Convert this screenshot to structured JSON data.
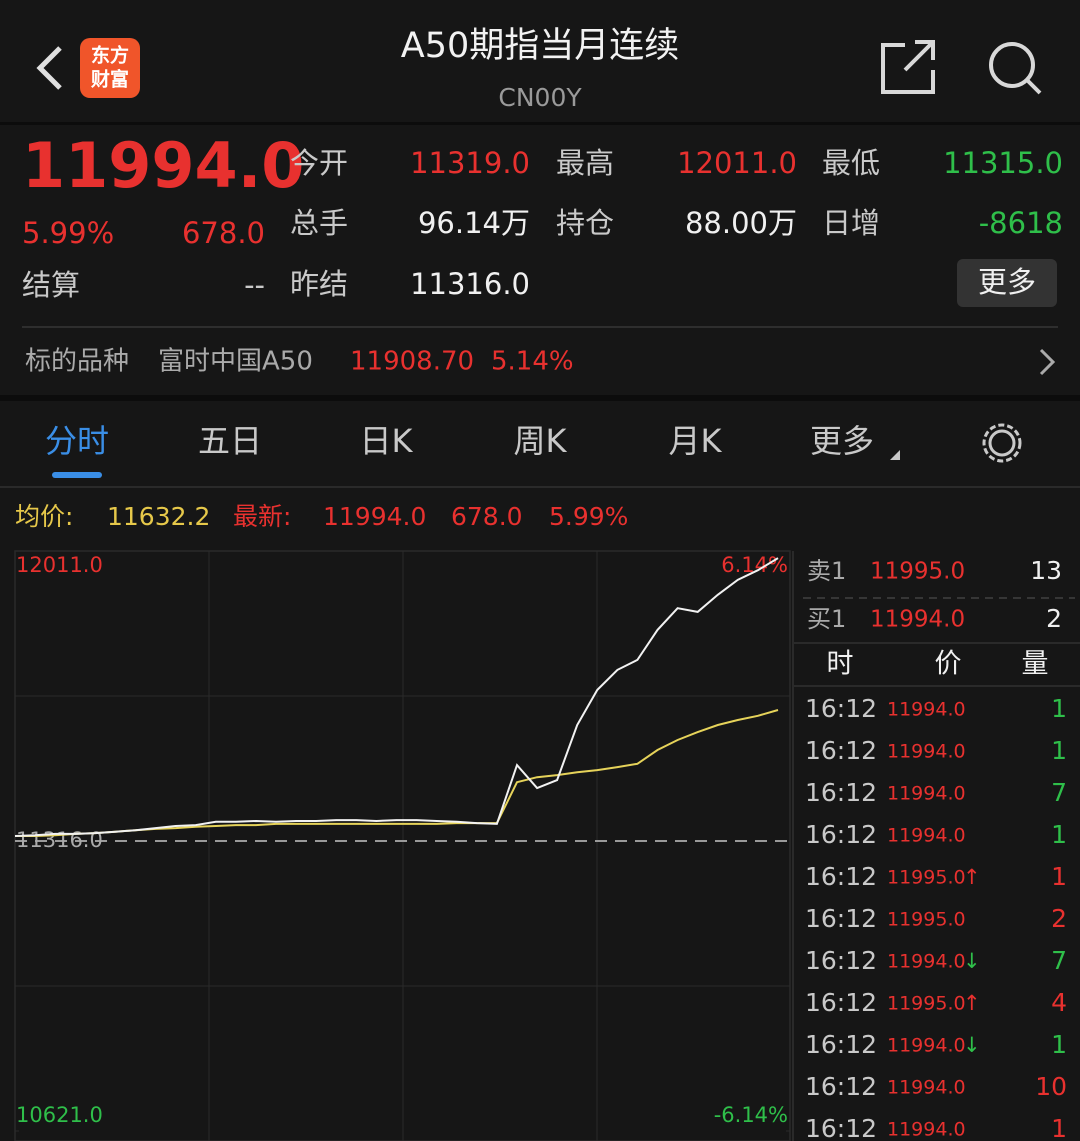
{
  "header": {
    "title": "A50期指当月连续",
    "code": "CN00Y",
    "logo": [
      "东方",
      "财富"
    ]
  },
  "colors": {
    "up": "#e8312f",
    "down": "#2fbf4a",
    "flat": "#f0f0f0"
  },
  "quote": {
    "price": "11994.0",
    "change_pct": "5.99%",
    "change": "678.0",
    "settle_label": "结算",
    "settle": "--",
    "fields": [
      {
        "label": "今开",
        "value": "11319.0",
        "color": "up"
      },
      {
        "label": "最高",
        "value": "12011.0",
        "color": "up"
      },
      {
        "label": "最低",
        "value": "11315.0",
        "color": "down"
      },
      {
        "label": "总手",
        "value": "96.14万",
        "color": "flat"
      },
      {
        "label": "持仓",
        "value": "88.00万",
        "color": "flat"
      },
      {
        "label": "日增",
        "value": "-8618",
        "color": "down"
      },
      {
        "label": "昨结",
        "value": "11316.0",
        "color": "flat"
      }
    ],
    "more": "更多"
  },
  "underlying": {
    "label": "标的品种",
    "name": "富时中国A50",
    "price": "11908.70",
    "pct": "5.14%"
  },
  "tabs": {
    "items": [
      "分时",
      "五日",
      "日K",
      "周K",
      "月K",
      "更多"
    ],
    "active": 0
  },
  "info_bar": {
    "avg_label": "均价:",
    "avg": "11632.2",
    "latest_label": "最新:",
    "latest": "11994.0",
    "change": "678.0",
    "pct": "5.99%"
  },
  "chart_data": {
    "type": "line",
    "ylim": [
      10621,
      12011
    ],
    "yticks": [
      {
        "value": 12011,
        "label": "12011.0"
      },
      {
        "value": 11316,
        "label": "11316.0"
      },
      {
        "value": 10621,
        "label": "10621.0"
      }
    ],
    "y2lim": [
      -6.14,
      6.14
    ],
    "y2ticks": [
      {
        "value": 6.14,
        "label": "6.14%"
      },
      {
        "value": -6.14,
        "label": "-6.14%"
      }
    ],
    "series": [
      {
        "name": "最新",
        "color": "#f2f2f2",
        "values": [
          11328,
          11330,
          11333,
          11333,
          11335,
          11338,
          11342,
          11347,
          11352,
          11354,
          11362,
          11362,
          11364,
          11362,
          11364,
          11364,
          11366,
          11366,
          11364,
          11366,
          11366,
          11364,
          11362,
          11359,
          11357,
          11498,
          11443,
          11462,
          11594,
          11678,
          11726,
          11750,
          11822,
          11874,
          11865,
          11906,
          11942,
          11965,
          11994
        ]
      },
      {
        "name": "均价",
        "color": "#e6d35a",
        "values": [
          11328,
          11328,
          11330,
          11333,
          11335,
          11338,
          11342,
          11345,
          11347,
          11350,
          11352,
          11354,
          11354,
          11357,
          11357,
          11357,
          11357,
          11357,
          11357,
          11357,
          11357,
          11357,
          11359,
          11359,
          11359,
          11457,
          11469,
          11474,
          11481,
          11486,
          11493,
          11501,
          11534,
          11558,
          11577,
          11594,
          11606,
          11616,
          11630
        ]
      }
    ]
  },
  "orderbook": [
    {
      "label": "卖1",
      "price": "11995.0",
      "qty": "13"
    },
    {
      "label": "买1",
      "price": "11994.0",
      "qty": "2"
    }
  ],
  "trades": {
    "headers": [
      "时",
      "价",
      "量"
    ],
    "rows": [
      {
        "time": "16:12",
        "price": "11994.0",
        "arrow": null,
        "qty": "1",
        "qty_color": "down"
      },
      {
        "time": "16:12",
        "price": "11994.0",
        "arrow": null,
        "qty": "1",
        "qty_color": "down"
      },
      {
        "time": "16:12",
        "price": "11994.0",
        "arrow": null,
        "qty": "7",
        "qty_color": "down"
      },
      {
        "time": "16:12",
        "price": "11994.0",
        "arrow": null,
        "qty": "1",
        "qty_color": "down"
      },
      {
        "time": "16:12",
        "price": "11995.0",
        "arrow": "↑",
        "qty": "1",
        "qty_color": "up"
      },
      {
        "time": "16:12",
        "price": "11995.0",
        "arrow": null,
        "qty": "2",
        "qty_color": "up"
      },
      {
        "time": "16:12",
        "price": "11994.0",
        "arrow": "↓",
        "qty": "7",
        "qty_color": "down"
      },
      {
        "time": "16:12",
        "price": "11995.0",
        "arrow": "↑",
        "qty": "4",
        "qty_color": "up"
      },
      {
        "time": "16:12",
        "price": "11994.0",
        "arrow": "↓",
        "qty": "1",
        "qty_color": "down"
      },
      {
        "time": "16:12",
        "price": "11994.0",
        "arrow": null,
        "qty": "10",
        "qty_color": "up"
      },
      {
        "time": "16:12",
        "price": "11994.0",
        "arrow": null,
        "qty": "1",
        "qty_color": "up"
      }
    ]
  }
}
